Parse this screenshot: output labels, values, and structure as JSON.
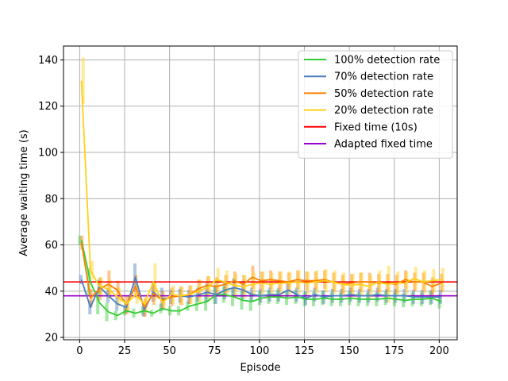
{
  "chart_data": {
    "type": "line",
    "xlabel": "Episode",
    "ylabel": "Average waiting time (s)",
    "xlim": [
      -9,
      210
    ],
    "ylim": [
      19,
      146
    ],
    "xticks": [
      0,
      25,
      50,
      75,
      100,
      125,
      150,
      175,
      200
    ],
    "yticks": [
      20,
      40,
      60,
      80,
      100,
      120,
      140
    ],
    "grid": true,
    "legend_position": "top-right",
    "x": [
      1,
      6,
      11,
      16,
      21,
      26,
      31,
      36,
      41,
      46,
      51,
      56,
      61,
      66,
      71,
      76,
      81,
      86,
      91,
      96,
      101,
      106,
      111,
      116,
      121,
      126,
      131,
      136,
      141,
      146,
      151,
      156,
      161,
      166,
      171,
      176,
      181,
      186,
      191,
      196,
      201
    ],
    "series": [
      {
        "name": "100% detection rate",
        "color": "#33cc33",
        "values": [
          62,
          44,
          35,
          31,
          29.5,
          31.5,
          30.5,
          31.5,
          30.5,
          32.5,
          31.5,
          31.5,
          33.5,
          34.5,
          35.5,
          38.5,
          38.5,
          37.5,
          36,
          35.5,
          37,
          37.5,
          37.5,
          37,
          37.5,
          36.5,
          36.5,
          37,
          36.5,
          36.5,
          37,
          36.5,
          36.5,
          36.5,
          37,
          36.5,
          36,
          36.5,
          36.5,
          37,
          35.5
        ],
        "err": [
          2,
          6,
          5,
          4,
          2,
          2,
          2,
          2,
          1.5,
          2,
          2,
          2,
          2,
          3,
          4,
          4,
          3.5,
          4,
          4,
          4,
          3,
          3,
          3,
          3,
          3,
          3,
          3,
          3,
          3,
          3,
          3,
          3,
          3,
          3,
          3,
          3,
          3,
          3,
          3,
          3,
          3
        ]
      },
      {
        "name": "70% detection rate",
        "color": "#4c7fbf",
        "values": [
          45,
          33,
          42,
          38,
          34.5,
          33,
          46,
          32,
          39.5,
          36.5,
          37.5,
          38,
          37.5,
          38.5,
          39.5,
          38.5,
          40.5,
          41.5,
          40.5,
          38.5,
          38,
          38.5,
          38.5,
          40.5,
          38.5,
          37,
          38.5,
          37.5,
          38,
          38,
          38.5,
          38,
          38,
          38.5,
          38,
          38,
          38,
          37.5,
          37.5,
          37.5,
          37.5
        ],
        "err": [
          2,
          3,
          3,
          3,
          3,
          2.5,
          6,
          3,
          4,
          5,
          3,
          3,
          3,
          3,
          4,
          4,
          4,
          4,
          4,
          3,
          3,
          3,
          3,
          3,
          3,
          3,
          3,
          3,
          3,
          3,
          3,
          3,
          3,
          3,
          3,
          3,
          3,
          3,
          3,
          3,
          3
        ]
      },
      {
        "name": "50% detection rate",
        "color": "#ff8000",
        "values": [
          61,
          37,
          41,
          43,
          40.5,
          34,
          42,
          33,
          39,
          36,
          37.5,
          38,
          38.5,
          41,
          42.5,
          42,
          43,
          44.5,
          43,
          46,
          44.5,
          45,
          44.5,
          44,
          45,
          44.5,
          44.5,
          45,
          44,
          43,
          43.5,
          44,
          44,
          43.5,
          43.5,
          43,
          45,
          44,
          44,
          42,
          43.5
        ],
        "err": [
          3,
          4,
          5,
          6,
          4,
          4,
          5,
          4,
          5,
          4,
          4,
          4,
          4,
          4,
          4,
          4,
          4,
          4,
          4,
          5,
          4,
          4,
          4,
          4,
          4,
          4,
          4,
          4,
          4,
          4,
          4,
          4,
          4,
          4,
          4,
          4,
          4,
          4,
          4,
          4,
          4
        ]
      },
      {
        "name": "20% detection rate",
        "color": "#ffd11a",
        "values": [
          131,
          49,
          42,
          41,
          37.5,
          34.5,
          38.5,
          34.5,
          44,
          35,
          38.5,
          38,
          38.5,
          40,
          41.5,
          45,
          44,
          42.5,
          42,
          43,
          43.5,
          43,
          43.5,
          43.5,
          44,
          43.5,
          44,
          44.5,
          44,
          43,
          42.5,
          43,
          42,
          44,
          43,
          43.5,
          43.5,
          45.5,
          44,
          44.5,
          45
        ],
        "err": [
          10,
          4,
          4,
          4,
          4,
          3,
          4,
          3,
          8,
          3,
          4,
          4,
          4,
          5,
          5,
          5,
          5,
          5,
          5,
          5,
          5,
          5,
          5,
          5,
          5,
          5,
          5,
          5,
          5,
          5,
          5,
          5,
          5,
          5,
          8,
          5,
          5,
          5,
          5,
          5,
          5
        ]
      }
    ],
    "reference_lines": [
      {
        "name": "Fixed time (10s)",
        "color": "#ff0000",
        "y": 44
      },
      {
        "name": "Adapted fixed time",
        "color": "#9900cc",
        "y": 38
      }
    ]
  }
}
